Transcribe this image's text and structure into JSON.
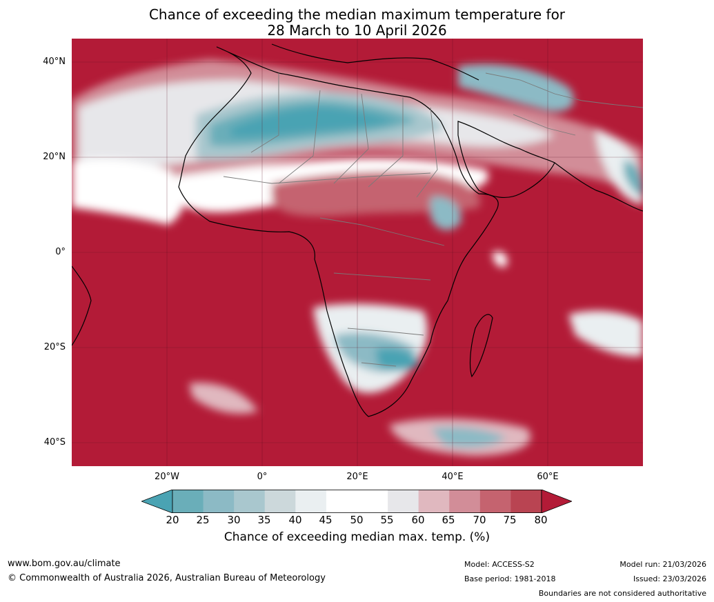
{
  "title": {
    "line1": "Chance of exceeding the median maximum temperature for",
    "line2": "28 March to 10 April 2026"
  },
  "map": {
    "lat_labels": [
      "40°N",
      "20°N",
      "0°",
      "20°S",
      "40°S"
    ],
    "lon_labels": [
      "20°W",
      "0°",
      "20°E",
      "40°E",
      "60°E"
    ],
    "background_color": "#b31b37"
  },
  "colorbar": {
    "ticks": [
      "20",
      "25",
      "30",
      "35",
      "40",
      "45",
      "50",
      "55",
      "60",
      "65",
      "70",
      "75",
      "80"
    ],
    "colors": [
      "#4aa3b3",
      "#6aaeb9",
      "#8cbac5",
      "#a9c7ce",
      "#ccd8db",
      "#eaeff1",
      "#ffffff",
      "#ffffff",
      "#e7e7ea",
      "#e0b8bf",
      "#d28d98",
      "#c5636f",
      "#b94452",
      "#b31b37"
    ],
    "label": "Chance of exceeding median max. temp. (%)"
  },
  "footer": {
    "url": "www.bom.gov.au/climate",
    "copyright": "© Commonwealth of Australia 2026, Australian Bureau of Meteorology",
    "model": "Model: ACCESS-S2",
    "base_period": "Base period: 1981-2018",
    "model_run": "Model run: 21/03/2026",
    "issued": "Issued: 23/03/2026",
    "disclaimer": "Boundaries are not considered authoritative"
  }
}
